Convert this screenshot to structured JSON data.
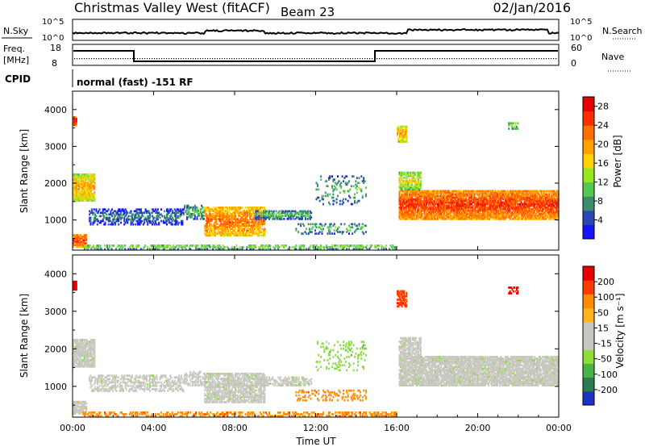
{
  "header": {
    "station": "Christmas Valley West (fitACF)",
    "beam": "Beam 23",
    "date": "02/Jan/2016"
  },
  "strips": {
    "nsky_label": "N.Sky",
    "nsearch_label": "N.Search",
    "nsky_ticks": [
      "10^5",
      "10^0"
    ],
    "nsearch_ticks": [
      "10^5",
      "10^0"
    ],
    "freq_label_1": "Freq.",
    "freq_label_2": "[MHz]",
    "freq_ticks": [
      "18",
      "8"
    ],
    "nave_label": "Nave",
    "nave_ticks": [
      "60",
      "0"
    ],
    "cpid_label": "CPID",
    "cpid_text": "normal (fast) -151 RF"
  },
  "chart_data": [
    {
      "type": "heatmap",
      "name": "power",
      "ylabel": "Slant Range [km]",
      "y_ticks": [
        "1000",
        "2000",
        "3000",
        "4000"
      ],
      "ylim": [
        180,
        4500
      ],
      "colorbar": {
        "label": "Power [dB]",
        "ticks": [
          "4",
          "8",
          "12",
          "16",
          "20",
          "24",
          "28"
        ],
        "colors": [
          "#1414ff",
          "#2848b4",
          "#3c8c6e",
          "#54c850",
          "#96e61e",
          "#ffd200",
          "#ffa000",
          "#ff6e00",
          "#ff2d00",
          "#e60000"
        ]
      }
    },
    {
      "type": "heatmap",
      "name": "velocity",
      "xlabel": "Time UT",
      "ylabel": "Slant Range [km]",
      "x_ticks": [
        "00:00",
        "04:00",
        "08:00",
        "12:00",
        "16:00",
        "20:00",
        "00:00"
      ],
      "y_ticks": [
        "1000",
        "2000",
        "3000",
        "4000"
      ],
      "ylim": [
        180,
        4500
      ],
      "colorbar": {
        "label": "Velocity [m s⁻¹]",
        "ticks": [
          "200",
          "100",
          "50",
          "15",
          "-15",
          "-50",
          "-100",
          "-200"
        ],
        "colors": [
          "#1e32c8",
          "#2c7a50",
          "#46b446",
          "#8cdc3c",
          "#c8c8c0",
          "#c8c8c0",
          "#ffb41e",
          "#ff8c00",
          "#ff3c00",
          "#e60000"
        ]
      }
    }
  ]
}
